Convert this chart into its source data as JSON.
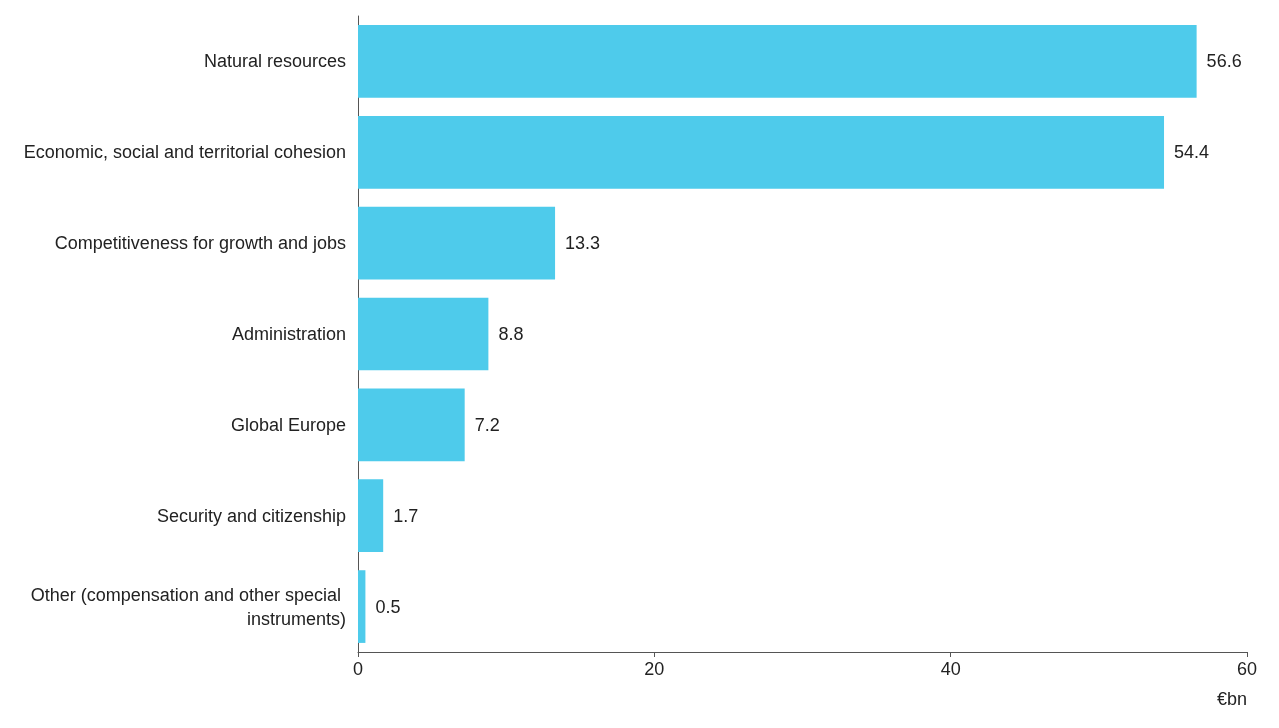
{
  "chart_data": {
    "type": "bar",
    "orientation": "horizontal",
    "xlabel": "€bn",
    "categories": [
      "Natural resources",
      "Economic, social and territorial cohesion",
      "Competitiveness for growth and jobs",
      "Administration",
      "Global Europe",
      "Security and citizenship",
      "Other (compensation and other special instruments)"
    ],
    "values": [
      56.6,
      54.4,
      13.3,
      8.8,
      7.2,
      1.7,
      0.5
    ],
    "color": "#4ecbeb",
    "xlim": [
      0,
      60
    ],
    "xticks": [
      0,
      20,
      40,
      60
    ],
    "grid": false,
    "data_labels": true
  }
}
